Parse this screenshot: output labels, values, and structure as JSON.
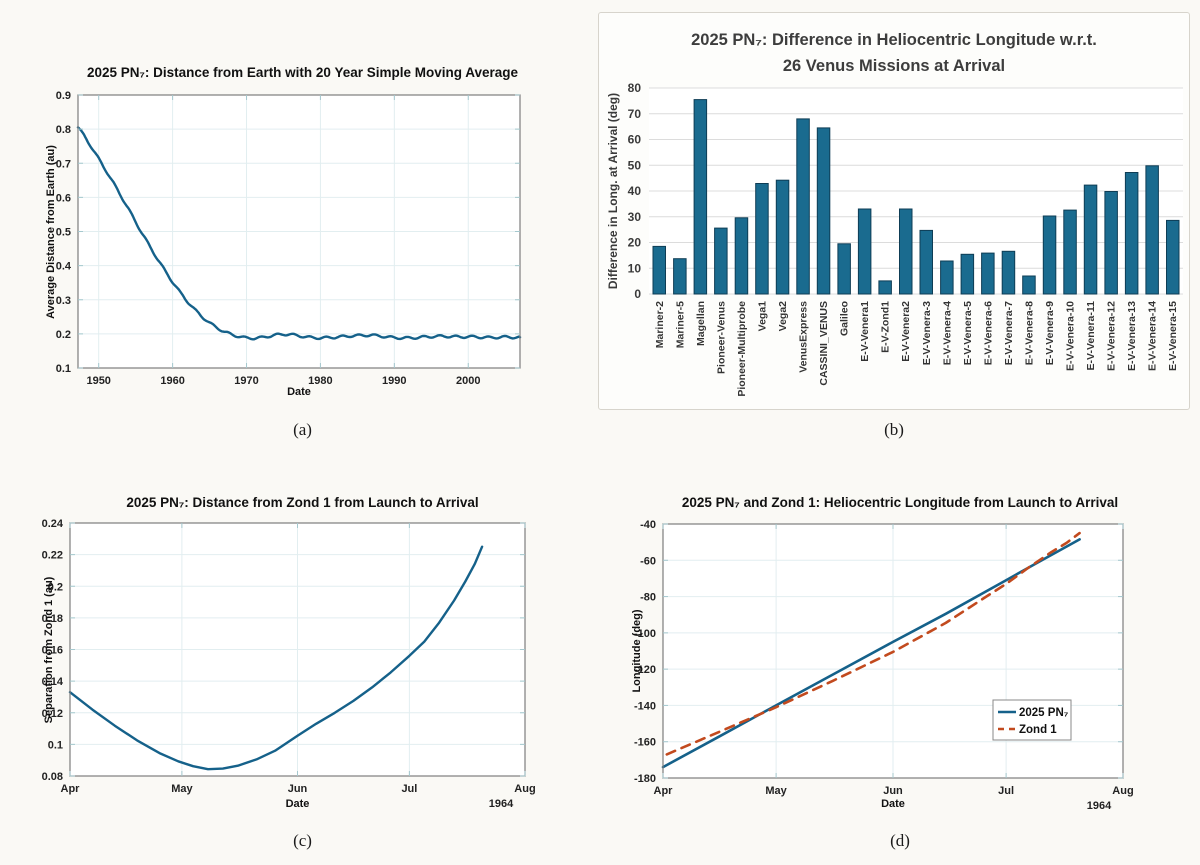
{
  "page": {
    "background_color": "#faf9f5"
  },
  "figure_labels": {
    "a": "(a)",
    "b": "(b)",
    "c": "(c)",
    "d": "(d)"
  },
  "colors": {
    "line_teal": "#15618a",
    "bar_fill": "#1a6b8f",
    "bar_edge": "#0e3d55",
    "dash_red": "#c24a1e",
    "grid_cyan": "#e2eef0",
    "grid_gray": "#dcdcdc",
    "spine": "#7d7d7d",
    "tick_mark": "#a5c8ce"
  },
  "chart_data": [
    {
      "id": "a",
      "type": "line",
      "title": "2025 PN₇: Distance from Earth with 20 Year Simple Moving Average",
      "xlabel": "Date",
      "ylabel": "Average Distance from Earth (au)",
      "xlim": [
        1947.2,
        2007
      ],
      "ylim": [
        0.1,
        0.9
      ],
      "xticks": [
        1950,
        1960,
        1970,
        1980,
        1990,
        2000
      ],
      "xticklabels": [
        "1950",
        "1960",
        "1970",
        "1980",
        "1990",
        "2000"
      ],
      "yticks": [
        0.1,
        0.2,
        0.3,
        0.4,
        0.5,
        0.6,
        0.7,
        0.8,
        0.9
      ],
      "yticklabels": [
        "0.1",
        "0.2",
        "0.3",
        "0.4",
        "0.5",
        "0.6",
        "0.7",
        "0.8",
        "0.9"
      ],
      "grid": true,
      "box": true,
      "oscillation": {
        "period_years": 2.2,
        "amplitude": 0.0032
      },
      "series": [
        {
          "id": "sma-distance",
          "name": "20 Year SMA of distance from Earth",
          "color": "#15618a",
          "width": 2.4,
          "x": [
            1947.2,
            1948,
            1949,
            1950,
            1951,
            1952,
            1953,
            1954,
            1955,
            1956,
            1957,
            1958,
            1959,
            1960,
            1961,
            1962,
            1963,
            1964,
            1965,
            1966,
            1967,
            1968,
            1969,
            1970,
            1971,
            1972,
            1973,
            1974,
            1975,
            1976,
            1977,
            1978,
            1979,
            1980,
            1981,
            1982,
            1983,
            1984,
            1985,
            1986,
            1987,
            1988,
            1989,
            1990,
            1991,
            1992,
            1993,
            1994,
            1995,
            1996,
            1997,
            1998,
            1999,
            2000,
            2001,
            2002,
            2003,
            2004,
            2005,
            2006,
            2007
          ],
          "y": [
            0.805,
            0.782,
            0.748,
            0.713,
            0.678,
            0.642,
            0.605,
            0.567,
            0.528,
            0.49,
            0.453,
            0.418,
            0.384,
            0.352,
            0.322,
            0.295,
            0.271,
            0.25,
            0.232,
            0.218,
            0.206,
            0.198,
            0.192,
            0.188,
            0.187,
            0.189,
            0.193,
            0.197,
            0.199,
            0.198,
            0.195,
            0.191,
            0.189,
            0.188,
            0.189,
            0.19,
            0.192,
            0.194,
            0.195,
            0.196,
            0.196,
            0.194,
            0.191,
            0.189,
            0.188,
            0.188,
            0.189,
            0.191,
            0.192,
            0.193,
            0.193,
            0.192,
            0.191,
            0.192,
            0.191,
            0.19,
            0.189,
            0.19,
            0.191,
            0.19,
            0.19
          ]
        }
      ]
    },
    {
      "id": "b",
      "type": "bar",
      "title_line1": "2025 PN₇:  Difference in Heliocentric Longitude w.r.t.",
      "title_line2": "26 Venus Missions at Arrival",
      "ylabel": "Difference in Long. at Arrival (deg)",
      "ylim": [
        0,
        80
      ],
      "yticks": [
        0,
        10,
        20,
        30,
        40,
        50,
        60,
        70,
        80
      ],
      "yticklabels": [
        "0",
        "10",
        "20",
        "30",
        "40",
        "50",
        "60",
        "70",
        "80"
      ],
      "grid": true,
      "box": false,
      "bar_width": 12.5,
      "categories": [
        "Mariner-2",
        "Mariner-5",
        "Magellan",
        "Pioneer-Venus",
        "Pioneer-Multiprobe",
        "Vega1",
        "Vega2",
        "VenusExpress",
        "CASSINI_VENUS",
        "Galileo",
        "E-V-Venera1",
        "E-V-Zond1",
        "E-V-Venera2",
        "E-V-Venera-3",
        "E-V-Venera-4",
        "E-V-Venera-5",
        "E-V-Venera-6",
        "E-V-Venera-7",
        "E-V-Venera-8",
        "E-V-Venera-9",
        "E-V-Venera-10",
        "E-V-Venera-11",
        "E-V-Venera-12",
        "E-V-Venera-13",
        "E-V-Venera-14",
        "E-V-Venera-15"
      ],
      "values": [
        18.5,
        13.7,
        75.5,
        25.6,
        29.6,
        42.9,
        44.2,
        68.0,
        64.5,
        19.5,
        33.0,
        5.1,
        33.0,
        24.7,
        12.8,
        15.4,
        15.9,
        16.6,
        7.0,
        30.3,
        32.6,
        42.3,
        39.8,
        47.2,
        49.8,
        28.6
      ]
    },
    {
      "id": "c",
      "type": "line",
      "title": "2025 PN₇: Distance from Zond 1 from Launch to Arrival",
      "xlabel": "Date",
      "ylabel": "Separation from Zond 1 (au)",
      "x_secondary_label": "1964",
      "xlim": [
        0,
        122
      ],
      "ylim": [
        0.08,
        0.24
      ],
      "xticks": [
        0,
        30,
        61,
        91,
        122
      ],
      "xticklabels": [
        "Apr",
        "May",
        "Jun",
        "Jul",
        "Aug"
      ],
      "yticks": [
        0.08,
        0.1,
        0.12,
        0.14,
        0.16,
        0.18,
        0.2,
        0.22,
        0.24
      ],
      "yticklabels": [
        "0.08",
        "0.1",
        "0.12",
        "0.14",
        "0.16",
        "0.18",
        "0.2",
        "0.22",
        "0.24"
      ],
      "grid": true,
      "box": true,
      "series": [
        {
          "id": "separation",
          "name": "Separation from Zond 1",
          "color": "#15618a",
          "width": 2.4,
          "x": [
            0,
            6,
            12,
            18,
            24,
            29,
            33,
            37,
            41,
            45,
            50,
            55,
            61,
            66,
            71,
            76,
            81,
            86,
            91,
            95,
            99,
            103,
            106,
            108.5,
            110.5
          ],
          "y": [
            0.133,
            0.122,
            0.1118,
            0.1025,
            0.0945,
            0.0893,
            0.0862,
            0.0843,
            0.0847,
            0.0865,
            0.0905,
            0.096,
            0.1055,
            0.113,
            0.12,
            0.1275,
            0.136,
            0.1455,
            0.156,
            0.165,
            0.177,
            0.191,
            0.203,
            0.214,
            0.225
          ]
        }
      ]
    },
    {
      "id": "d",
      "type": "line",
      "title": "2025 PN₇ and Zond 1: Heliocentric Longitude from Launch to Arrival",
      "xlabel": "Date",
      "ylabel": "Longitude (deg)",
      "x_secondary_label": "1964",
      "xlim": [
        0,
        122
      ],
      "ylim": [
        -180,
        -40
      ],
      "xticks": [
        0,
        30,
        61,
        91,
        122
      ],
      "xticklabels": [
        "Apr",
        "May",
        "Jun",
        "Jul",
        "Aug"
      ],
      "yticks": [
        -180,
        -160,
        -140,
        -120,
        -100,
        -80,
        -60,
        -40
      ],
      "yticklabels": [
        "-180",
        "-160",
        "-140",
        "-120",
        "-100",
        "-80",
        "-60",
        "-40"
      ],
      "grid": true,
      "box": true,
      "legend": true,
      "series": [
        {
          "id": "pn7-longitude",
          "name": "2025 PN₇",
          "color": "#15618a",
          "width": 2.6,
          "x": [
            0,
            15,
            30,
            45,
            61,
            75,
            91,
            100,
            110.5
          ],
          "y": [
            -174,
            -157,
            -140,
            -123,
            -105,
            -89.5,
            -71,
            -60.5,
            -48.5
          ]
        },
        {
          "id": "zond1-longitude",
          "name": "Zond 1",
          "color": "#c24a1e",
          "width": 2.6,
          "dash": "9 7",
          "x": [
            1,
            15,
            30,
            45,
            61,
            75,
            85,
            91,
            97,
            103,
            107,
            110.5
          ],
          "y": [
            -167,
            -154.5,
            -141,
            -126.5,
            -110.5,
            -94.5,
            -81,
            -73,
            -64,
            -55.5,
            -50.5,
            -45
          ]
        }
      ]
    }
  ]
}
